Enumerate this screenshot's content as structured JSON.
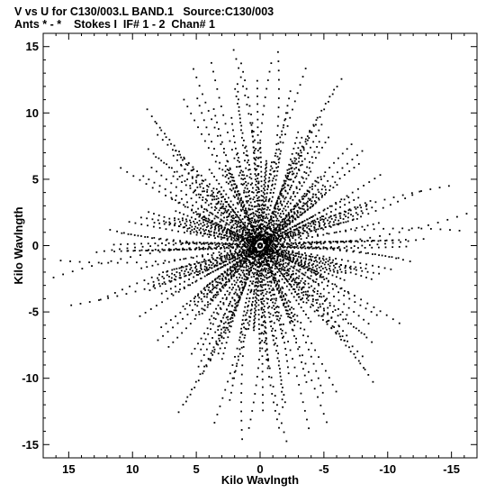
{
  "header": {
    "line1": "V vs U for C130/003.L BAND.1   Source:C130/003",
    "line2": "Ants * - *    Stokes I  IF# 1 - 2  Chan# 1"
  },
  "chart_data": {
    "type": "scatter",
    "title": "V vs U for C130/003.L BAND.1   Source:C130/003",
    "subtitle": "Ants * - *    Stokes I  IF# 1 - 2  Chan# 1",
    "xlabel": "Kilo Wavlngth",
    "ylabel": "Kilo Wavlngth",
    "xlim": [
      17,
      -17
    ],
    "ylim": [
      -16,
      16
    ],
    "x_reversed": true,
    "xticks": [
      15,
      10,
      5,
      0,
      -5,
      -10,
      -15
    ],
    "yticks": [
      15,
      10,
      5,
      0,
      -5,
      -10,
      -15
    ],
    "xtick_labels": [
      "15",
      "10",
      "5",
      "0",
      "-5",
      "-10",
      "-15"
    ],
    "ytick_labels": [
      "15",
      "10",
      "5",
      "0",
      "-5",
      "-10",
      "-15"
    ],
    "grid": false,
    "marker_color": "#000000",
    "pattern": {
      "description": "uv-coverage snapshot tracks: radial spokes through origin, point-symmetric",
      "arm_angles_deg": [
        -79,
        -55,
        -32,
        -12,
        12,
        33,
        55,
        80
      ],
      "arm_max_radius": [
        15.6,
        13.9,
        10.6,
        16.4,
        12.1,
        12.4,
        14.0,
        14.8
      ],
      "tracks_per_arm": 14,
      "points_per_track": 22
    }
  }
}
